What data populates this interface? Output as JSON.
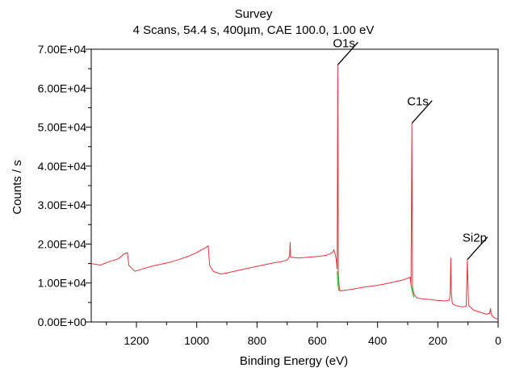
{
  "chart_data": {
    "type": "line",
    "title": "Survey",
    "subtitle": "4 Scans,  54.4 s,  400µm,  CAE 100.0,  1.00 eV",
    "xlabel": "Binding Energy (eV)",
    "ylabel": "Counts / s",
    "xlim": [
      1350,
      0
    ],
    "ylim": [
      0,
      70000
    ],
    "x_reversed": true,
    "grid": false,
    "x_ticks": [
      1200,
      1000,
      800,
      600,
      400,
      200,
      0
    ],
    "x_tick_labels": [
      "1200",
      "1000",
      "800",
      "600",
      "400",
      "200",
      "0"
    ],
    "y_ticks": [
      0,
      10000,
      20000,
      30000,
      40000,
      50000,
      60000,
      70000
    ],
    "y_tick_labels": [
      "0.00E+00",
      "1.00E+04",
      "2.00E+04",
      "3.00E+04",
      "4.00E+04",
      "5.00E+04",
      "6.00E+04",
      "7.00E+04"
    ],
    "line_color": "#e8323c",
    "peak_fit_color": "#33cc33",
    "series": [
      {
        "points": [
          [
            1350,
            15000
          ],
          [
            1320,
            14600
          ],
          [
            1290,
            15500
          ],
          [
            1260,
            16200
          ],
          [
            1240,
            17500
          ],
          [
            1230,
            17800
          ],
          [
            1225,
            14500
          ],
          [
            1205,
            13000
          ],
          [
            1180,
            13600
          ],
          [
            1150,
            14300
          ],
          [
            1120,
            14800
          ],
          [
            1090,
            15300
          ],
          [
            1060,
            16000
          ],
          [
            1030,
            16800
          ],
          [
            1000,
            17800
          ],
          [
            985,
            18500
          ],
          [
            972,
            19000
          ],
          [
            962,
            19500
          ],
          [
            957,
            14500
          ],
          [
            945,
            13000
          ],
          [
            920,
            12300
          ],
          [
            900,
            12600
          ],
          [
            870,
            13100
          ],
          [
            840,
            13600
          ],
          [
            810,
            14100
          ],
          [
            780,
            14600
          ],
          [
            750,
            15100
          ],
          [
            720,
            15500
          ],
          [
            700,
            15900
          ],
          [
            692,
            16800
          ],
          [
            690,
            20500
          ],
          [
            688,
            16600
          ],
          [
            660,
            16400
          ],
          [
            630,
            16600
          ],
          [
            600,
            16800
          ],
          [
            570,
            17100
          ],
          [
            550,
            17800
          ],
          [
            545,
            18500
          ],
          [
            540,
            17200
          ],
          [
            537,
            16000
          ],
          [
            534,
            13500
          ],
          [
            532,
            66000
          ],
          [
            530,
            12500
          ],
          [
            528,
            9500
          ],
          [
            525,
            8000
          ],
          [
            500,
            8200
          ],
          [
            470,
            8600
          ],
          [
            440,
            9000
          ],
          [
            410,
            9300
          ],
          [
            380,
            9700
          ],
          [
            350,
            10200
          ],
          [
            320,
            10700
          ],
          [
            300,
            11200
          ],
          [
            292,
            11500
          ],
          [
            289,
            9500
          ],
          [
            286,
            51000
          ],
          [
            284,
            9000
          ],
          [
            280,
            7200
          ],
          [
            270,
            6200
          ],
          [
            250,
            5900
          ],
          [
            230,
            5800
          ],
          [
            200,
            5500
          ],
          [
            175,
            5400
          ],
          [
            162,
            5600
          ],
          [
            159,
            7000
          ],
          [
            157,
            16500
          ],
          [
            155,
            7500
          ],
          [
            152,
            4700
          ],
          [
            140,
            4200
          ],
          [
            120,
            3900
          ],
          [
            106,
            4000
          ],
          [
            104,
            10000
          ],
          [
            102,
            16000
          ],
          [
            100,
            9500
          ],
          [
            98,
            4200
          ],
          [
            80,
            3000
          ],
          [
            60,
            2500
          ],
          [
            40,
            2000
          ],
          [
            28,
            2200
          ],
          [
            25,
            3500
          ],
          [
            23,
            2000
          ],
          [
            15,
            1200
          ],
          [
            8,
            900
          ],
          [
            0,
            700
          ]
        ]
      }
    ],
    "peak_fits": [
      {
        "points": [
          [
            534,
            13000
          ],
          [
            531,
            9500
          ],
          [
            528,
            8000
          ]
        ]
      },
      {
        "points": [
          [
            289,
            9500
          ],
          [
            285,
            8000
          ],
          [
            282,
            7000
          ],
          [
            279,
            6300
          ]
        ]
      }
    ],
    "annotations": [
      {
        "label": "O1s",
        "x": 532,
        "y": 66000
      },
      {
        "label": "C1s",
        "x": 286,
        "y": 51000
      },
      {
        "label": "Si2p",
        "x": 102,
        "y": 16000
      }
    ]
  }
}
